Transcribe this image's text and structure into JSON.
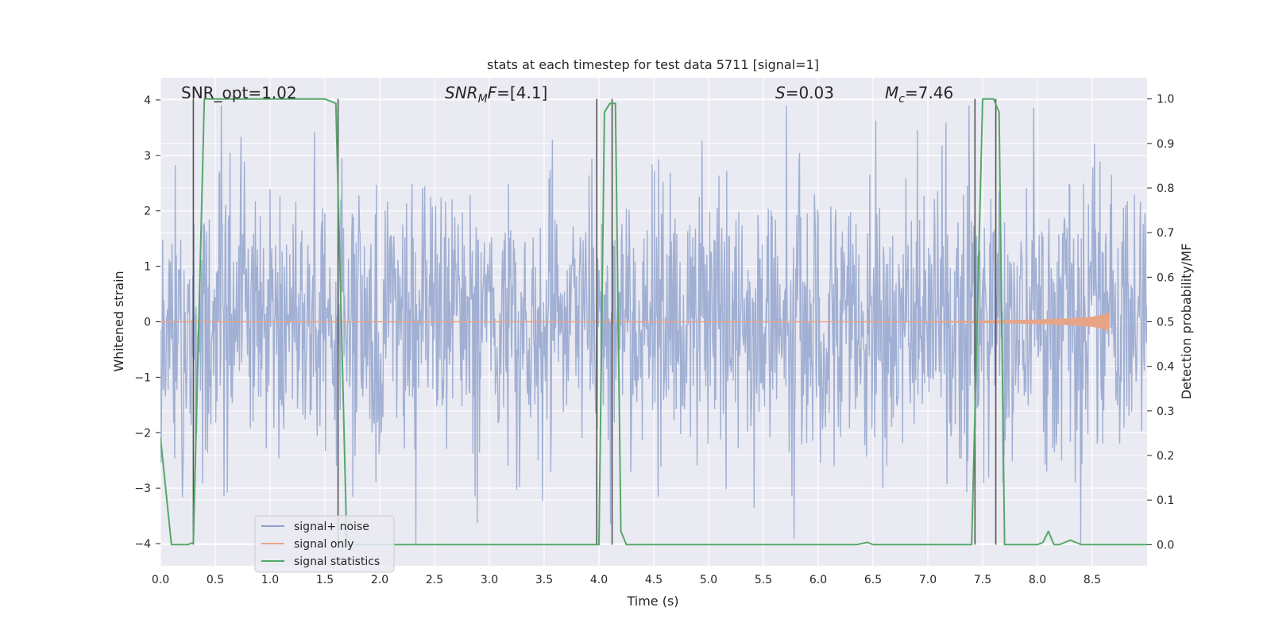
{
  "chart_data": {
    "type": "line",
    "title": "stats at each timestep for test data 5711 [signal=1]",
    "xlabel": "Time (s)",
    "ylabel": "Whitened strain",
    "ylabel_right": "Detection probability/MF",
    "xlim": [
      0.0,
      9.0
    ],
    "ylim": [
      -4.4,
      4.4
    ],
    "ylim_right": [
      -0.0475,
      1.0475
    ],
    "x_ticks": [
      0.0,
      0.5,
      1.0,
      1.5,
      2.0,
      2.5,
      3.0,
      3.5,
      4.0,
      4.5,
      5.0,
      5.5,
      6.0,
      6.5,
      7.0,
      7.5,
      8.0,
      8.5
    ],
    "x_tick_labels": [
      "0.0",
      "0.5",
      "1.0",
      "1.5",
      "2.0",
      "2.5",
      "3.0",
      "3.5",
      "4.0",
      "4.5",
      "5.0",
      "5.5",
      "6.0",
      "6.5",
      "7.0",
      "7.5",
      "8.0",
      "8.5"
    ],
    "y_ticks": [
      -4,
      -3,
      -2,
      -1,
      0,
      1,
      2,
      3,
      4
    ],
    "y_tick_labels": [
      "−4",
      "−3",
      "−2",
      "−1",
      "0",
      "1",
      "2",
      "3",
      "4"
    ],
    "y2_ticks": [
      0.0,
      0.1,
      0.2,
      0.3,
      0.4,
      0.5,
      0.6,
      0.7,
      0.8,
      0.9,
      1.0
    ],
    "y2_tick_labels": [
      "0.0",
      "0.1",
      "0.2",
      "0.3",
      "0.4",
      "0.5",
      "0.6",
      "0.7",
      "0.8",
      "0.9",
      "1.0"
    ],
    "annotations": [
      {
        "text": "SNR_opt=1.02",
        "x": 0.2,
        "y": 4.15
      },
      {
        "text": "SNR_MF=[4.1]",
        "x": 2.6,
        "y": 4.15
      },
      {
        "text": "S=0.03",
        "x": 5.6,
        "y": 4.15
      },
      {
        "text": "M_c=7.46",
        "x": 6.6,
        "y": 4.15
      }
    ],
    "legend": {
      "placement": "lower-left",
      "entries": [
        "signal+ noise",
        "signal only",
        "signal statistics"
      ]
    },
    "colors": {
      "noise": "#8da0cb",
      "signal": "#e8a487",
      "stats": "#55a868",
      "background": "#eaeaf2",
      "grid": "#ffffff",
      "vline": "#555555"
    },
    "series": [
      {
        "name": "signal statistics",
        "axis": "right",
        "x": [
          0.0,
          0.05,
          0.1,
          0.2,
          0.25,
          0.3,
          0.35,
          0.4,
          0.5,
          1.0,
          1.5,
          1.6,
          1.65,
          1.7,
          2.0,
          3.0,
          3.5,
          3.95,
          4.0,
          4.05,
          4.1,
          4.15,
          4.2,
          4.25,
          4.3,
          5.0,
          6.0,
          6.35,
          6.45,
          6.5,
          7.0,
          7.35,
          7.4,
          7.45,
          7.5,
          7.55,
          7.6,
          7.65,
          7.7,
          7.75,
          8.0,
          8.05,
          8.1,
          8.15,
          8.2,
          8.25,
          8.3,
          8.35,
          8.4,
          8.5,
          9.0
        ],
        "values": [
          0.24,
          0.12,
          0.0,
          0.0,
          0.0,
          0.005,
          0.5,
          1.0,
          1.0,
          1.0,
          1.0,
          0.99,
          0.5,
          0.0,
          0.0,
          0.0,
          0.0,
          0.0,
          0.0,
          0.97,
          0.99,
          0.99,
          0.03,
          0.0,
          0.0,
          0.0,
          0.0,
          0.0,
          0.005,
          0.0,
          0.0,
          0.0,
          0.0,
          0.5,
          1.0,
          1.0,
          1.0,
          0.97,
          0.0,
          0.0,
          0.0,
          0.005,
          0.03,
          0.0,
          0.0,
          0.005,
          0.01,
          0.005,
          0.0,
          0.0,
          0.0
        ]
      },
      {
        "name": "signal only",
        "axis": "left",
        "x": [
          0.0,
          7.0,
          7.5,
          8.0,
          8.3,
          8.5,
          8.6,
          8.65
        ],
        "envelope": [
          0.0,
          0.0,
          0.01,
          0.03,
          0.05,
          0.08,
          0.12,
          0.15
        ]
      },
      {
        "name": "signal+ noise",
        "axis": "left",
        "sample_rate_hz": 200,
        "duration_s": 9.0,
        "envelope_sigma": 1.2,
        "peak_range": [
          -4.0,
          3.9
        ],
        "description": "whitened noisy strain"
      }
    ],
    "vlines": [
      0.3,
      1.62,
      3.98,
      4.12,
      7.43,
      7.62
    ]
  }
}
